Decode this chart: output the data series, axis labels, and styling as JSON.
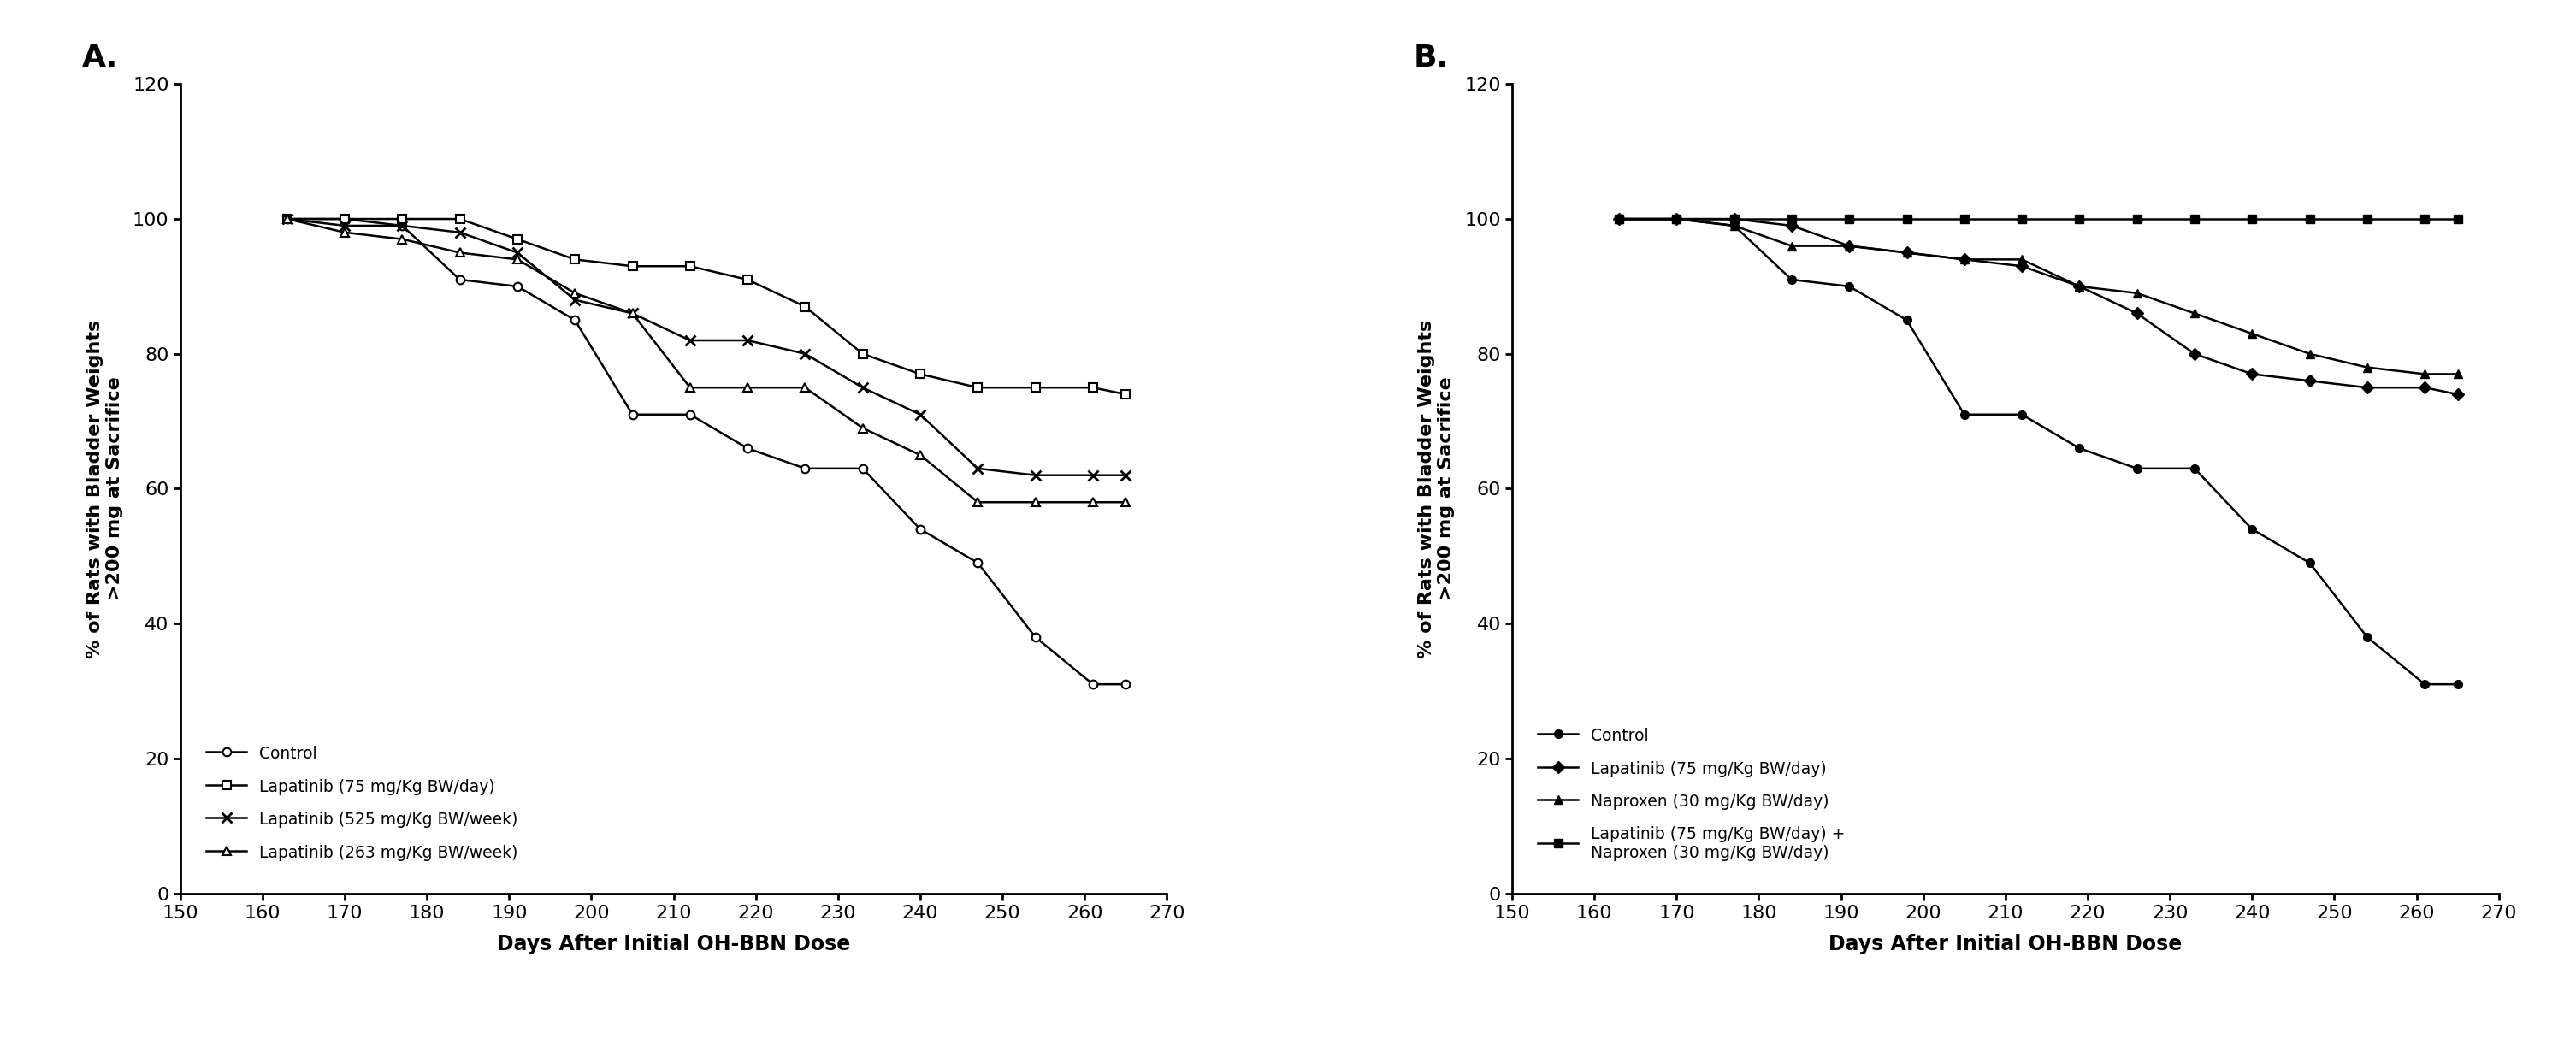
{
  "panel_A": {
    "title": "A.",
    "series": [
      {
        "label": "Control",
        "marker": "o",
        "x": [
          163,
          170,
          177,
          184,
          191,
          198,
          205,
          212,
          219,
          226,
          233,
          240,
          247,
          254,
          261,
          265
        ],
        "y": [
          100,
          100,
          99,
          91,
          90,
          85,
          71,
          71,
          66,
          63,
          63,
          54,
          49,
          38,
          31,
          31
        ]
      },
      {
        "label": "Lapatinib (75 mg/Kg BW/day)",
        "marker": "s",
        "x": [
          163,
          170,
          177,
          184,
          191,
          198,
          205,
          212,
          219,
          226,
          233,
          240,
          247,
          254,
          261,
          265
        ],
        "y": [
          100,
          100,
          100,
          100,
          97,
          94,
          93,
          93,
          91,
          87,
          80,
          77,
          75,
          75,
          75,
          74
        ]
      },
      {
        "label": "Lapatinib (525 mg/Kg BW/week)",
        "marker": "x",
        "x": [
          163,
          170,
          177,
          184,
          191,
          198,
          205,
          212,
          219,
          226,
          233,
          240,
          247,
          254,
          261,
          265
        ],
        "y": [
          100,
          99,
          99,
          98,
          95,
          88,
          86,
          82,
          82,
          80,
          75,
          71,
          63,
          62,
          62,
          62
        ]
      },
      {
        "label": "Lapatinib (263 mg/Kg BW/week)",
        "marker": "^",
        "x": [
          163,
          170,
          177,
          184,
          191,
          198,
          205,
          212,
          219,
          226,
          233,
          240,
          247,
          254,
          261,
          265
        ],
        "y": [
          100,
          98,
          97,
          95,
          94,
          89,
          86,
          75,
          75,
          75,
          69,
          65,
          58,
          58,
          58,
          58
        ]
      }
    ],
    "xlabel": "Days After Initial OH-BBN Dose",
    "ylabel": "% of Rats with Bladder Weights\n>200 mg at Sacrifice",
    "xlim": [
      150,
      270
    ],
    "ylim": [
      0,
      120
    ],
    "xticks": [
      150,
      160,
      170,
      180,
      190,
      200,
      210,
      220,
      230,
      240,
      250,
      260,
      270
    ],
    "yticks": [
      0,
      20,
      40,
      60,
      80,
      100,
      120
    ]
  },
  "panel_B": {
    "title": "B.",
    "series": [
      {
        "label": "Control",
        "marker": "o",
        "x": [
          163,
          170,
          177,
          184,
          191,
          198,
          205,
          212,
          219,
          226,
          233,
          240,
          247,
          254,
          261,
          265
        ],
        "y": [
          100,
          100,
          99,
          91,
          90,
          85,
          71,
          71,
          66,
          63,
          63,
          54,
          49,
          38,
          31,
          31
        ]
      },
      {
        "label": "Lapatinib (75 mg/Kg BW/day)",
        "marker": "D",
        "x": [
          163,
          170,
          177,
          184,
          191,
          198,
          205,
          212,
          219,
          226,
          233,
          240,
          247,
          254,
          261,
          265
        ],
        "y": [
          100,
          100,
          100,
          99,
          96,
          95,
          94,
          93,
          90,
          86,
          80,
          77,
          76,
          75,
          75,
          74
        ]
      },
      {
        "label": "Naproxen (30 mg/Kg BW/day)",
        "marker": "^",
        "x": [
          163,
          170,
          177,
          184,
          191,
          198,
          205,
          212,
          219,
          226,
          233,
          240,
          247,
          254,
          261,
          265
        ],
        "y": [
          100,
          100,
          99,
          96,
          96,
          95,
          94,
          94,
          90,
          89,
          86,
          83,
          80,
          78,
          77,
          77
        ]
      },
      {
        "label": "Lapatinib (75 mg/Kg BW/day) +\nNaproxen (30 mg/Kg BW/day)",
        "marker": "s",
        "x": [
          163,
          170,
          177,
          184,
          191,
          198,
          205,
          212,
          219,
          226,
          233,
          240,
          247,
          254,
          261,
          265
        ],
        "y": [
          100,
          100,
          100,
          100,
          100,
          100,
          100,
          100,
          100,
          100,
          100,
          100,
          100,
          100,
          100,
          100
        ]
      }
    ],
    "xlabel": "Days After Initial OH-BBN Dose",
    "ylabel": "% of Rats with Bladder Weights\n>200 mg at Sacrifice",
    "xlim": [
      150,
      270
    ],
    "ylim": [
      0,
      120
    ],
    "xticks": [
      150,
      160,
      170,
      180,
      190,
      200,
      210,
      220,
      230,
      240,
      250,
      260,
      270
    ],
    "yticks": [
      0,
      20,
      40,
      60,
      80,
      100,
      120
    ]
  },
  "line_color": "#000000",
  "markersize": 7,
  "linewidth": 1.8,
  "background_color": "#ffffff"
}
